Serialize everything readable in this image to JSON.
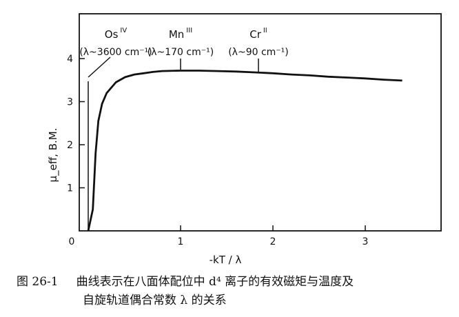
{
  "chart_data": {
    "type": "line",
    "xlabel": "-kT / λ",
    "ylabel": "μ_eff, B.M.",
    "xlim": [
      0,
      3.5
    ],
    "ylim": [
      0,
      4.8
    ],
    "xticks": [
      0,
      1,
      2,
      3
    ],
    "yticks": [
      1,
      2,
      3,
      4
    ],
    "grid": false,
    "series": [
      {
        "x": [
          0.0,
          0.05,
          0.08,
          0.11,
          0.15,
          0.2,
          0.3,
          0.4,
          0.5,
          0.6,
          0.7,
          0.8,
          1.0,
          1.2,
          1.4,
          1.6,
          1.8,
          2.0,
          2.2,
          2.4,
          2.6,
          2.8,
          3.0,
          3.2,
          3.4
        ],
        "y": [
          0.0,
          0.5,
          1.8,
          2.55,
          2.95,
          3.2,
          3.45,
          3.57,
          3.63,
          3.66,
          3.69,
          3.71,
          3.72,
          3.72,
          3.71,
          3.7,
          3.68,
          3.66,
          3.63,
          3.61,
          3.58,
          3.56,
          3.54,
          3.51,
          3.49
        ]
      }
    ],
    "annotations": [
      {
        "ion": "Os",
        "ox": "IV",
        "coupling": "(λ~3600 cm⁻¹)",
        "x": 0.02
      },
      {
        "ion": "Mn",
        "ox": "III",
        "coupling": "(λ~170 cm⁻¹)",
        "x": 1.0
      },
      {
        "ion": "Cr",
        "ox": "II",
        "coupling": "(λ~90 cm⁻¹)",
        "x": 1.8
      }
    ]
  },
  "caption": {
    "number": "图 26-1",
    "line1": "曲线表示在八面体配位中 d⁴ 离子的有效磁矩与温度及",
    "line2": "自旋轨道偶合常数 λ 的关系"
  }
}
